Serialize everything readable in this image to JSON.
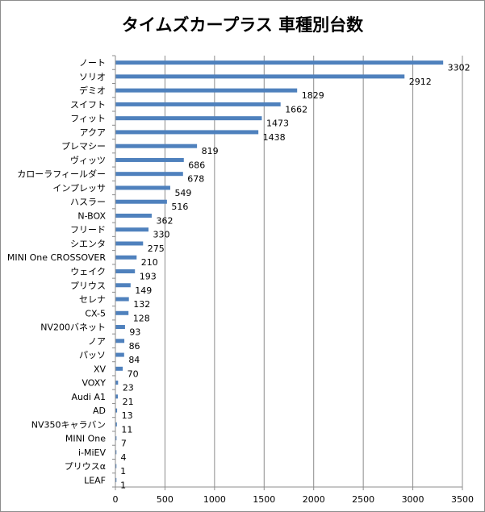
{
  "chart_data": {
    "type": "bar",
    "orientation": "horizontal",
    "title": "タイムズカープラス 車種別台数",
    "xlabel": "",
    "ylabel": "",
    "xlim": [
      0,
      3500
    ],
    "x_ticks": [
      0,
      500,
      1000,
      1500,
      2000,
      2500,
      3000,
      3500
    ],
    "grid": "vertical",
    "legend": "none",
    "bar_color": "#4f81bd",
    "categories": [
      "ノート",
      "ソリオ",
      "デミオ",
      "スイフト",
      "フィット",
      "アクア",
      "プレマシー",
      "ヴィッツ",
      "カローラフィールダー",
      "インプレッサ",
      "ハスラー",
      "N-BOX",
      "フリード",
      "シエンタ",
      "MINI One CROSSOVER",
      "ウェイク",
      "プリウス",
      "セレナ",
      "CX-5",
      "NV200バネット",
      "ノア",
      "パッソ",
      "XV",
      "VOXY",
      "Audi A1",
      "AD",
      "NV350キャラバン",
      "MINI One",
      "i-MiEV",
      "プリウスα",
      "LEAF"
    ],
    "values": [
      3302,
      2912,
      1829,
      1662,
      1473,
      1438,
      819,
      686,
      678,
      549,
      516,
      362,
      330,
      275,
      210,
      193,
      149,
      132,
      128,
      93,
      86,
      84,
      70,
      23,
      21,
      13,
      11,
      7,
      4,
      1,
      1
    ]
  }
}
